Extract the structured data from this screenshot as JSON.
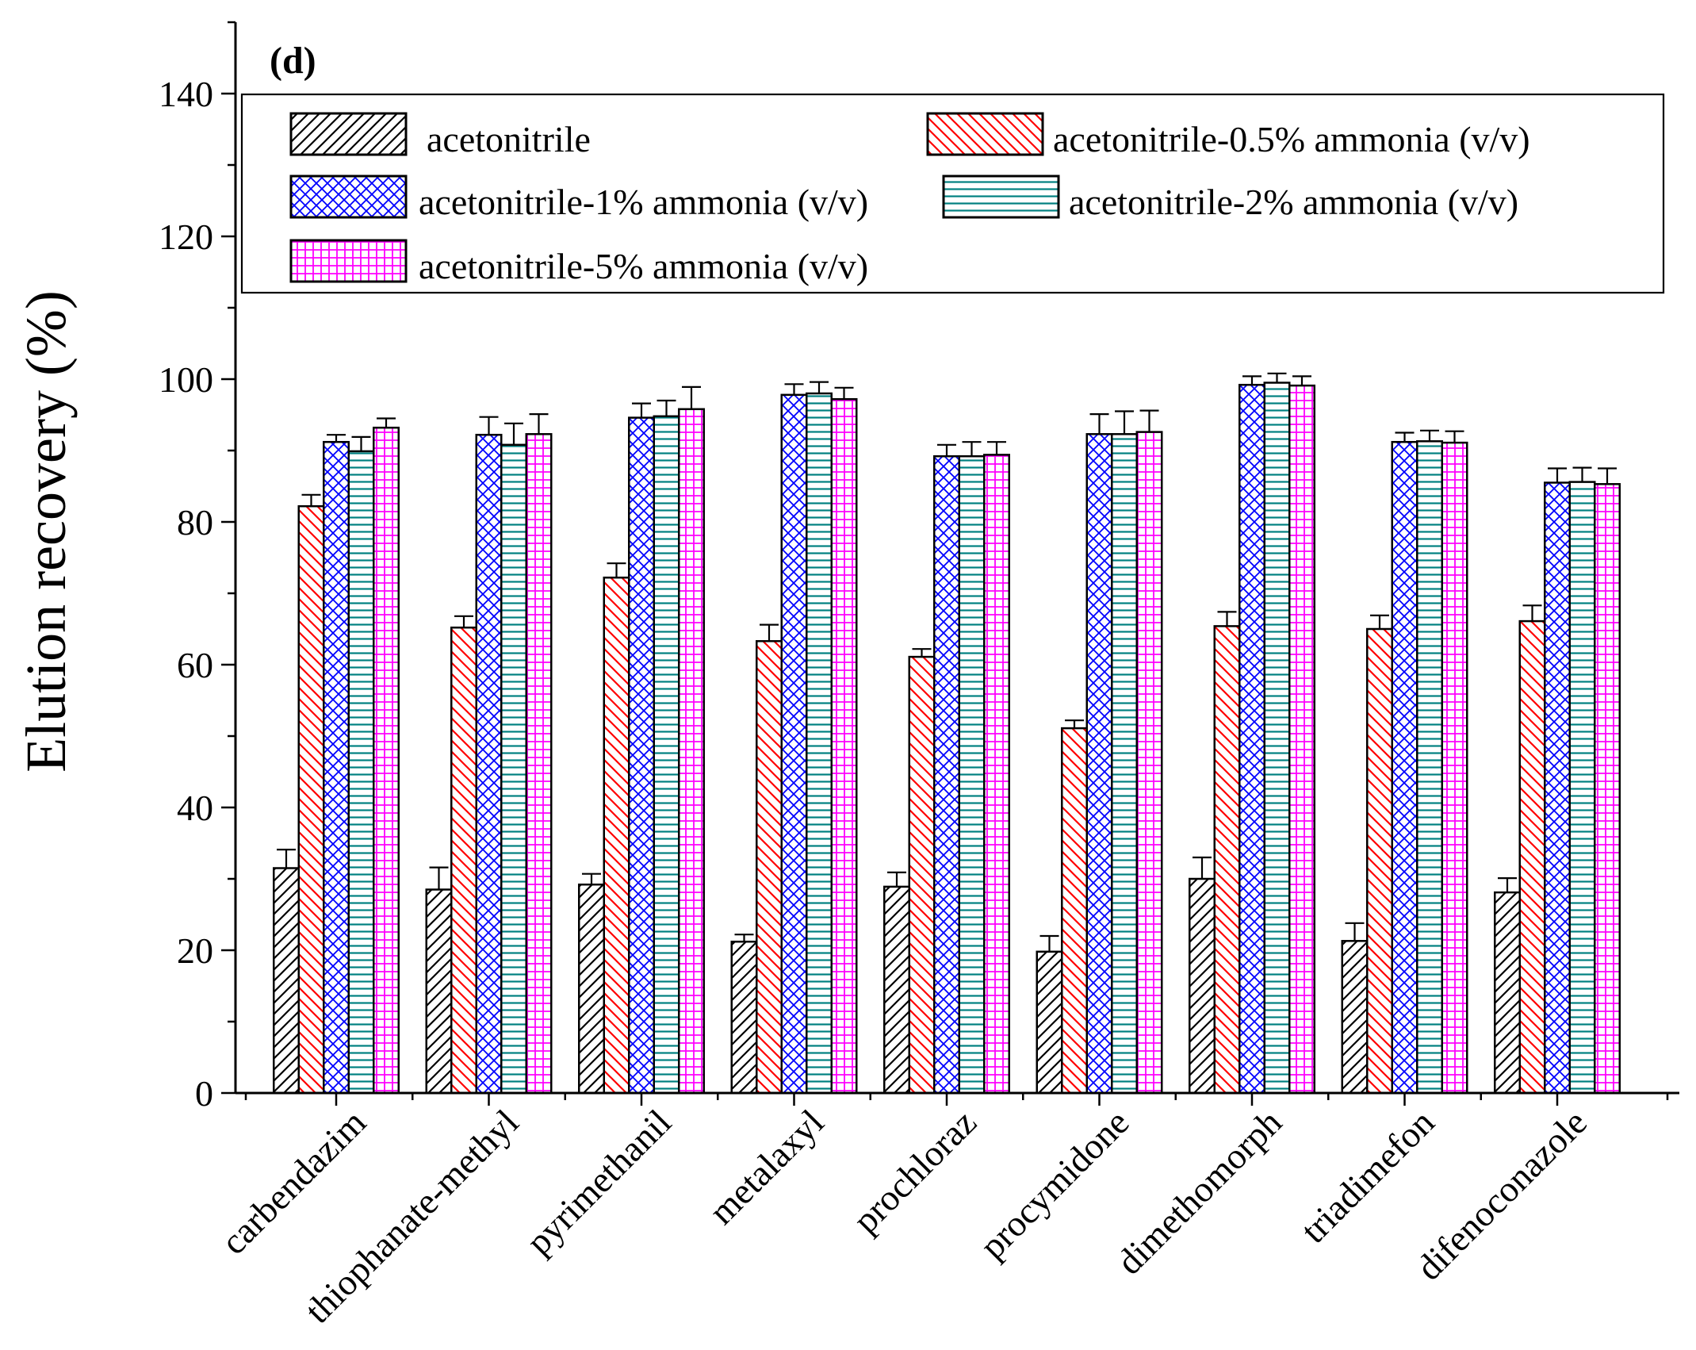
{
  "chart_data": {
    "type": "bar",
    "panel_label": "(d)",
    "ylabel": "Elution recovery (%)",
    "xlabel": "",
    "ylim": [
      0,
      150
    ],
    "yticks": [
      0,
      20,
      40,
      60,
      80,
      100,
      120,
      140
    ],
    "categories": [
      "carbendazim",
      "thiophanate-methyl",
      "pyrimethanil",
      "metalaxyl",
      "prochloraz",
      "procymidone",
      "dimethomorph",
      "triadimefon",
      "difenoconazole"
    ],
    "series": [
      {
        "name": "acetonitrile",
        "color": "#000000",
        "pattern": "diagonal-forward",
        "values": [
          31.5,
          28.5,
          29.2,
          21.2,
          28.9,
          19.8,
          30.0,
          21.3,
          28.1
        ],
        "errors": [
          2.6,
          3.1,
          1.5,
          1.0,
          2.0,
          2.2,
          3.0,
          2.5,
          2.0
        ]
      },
      {
        "name": "acetonitrile-0.5% ammonia (v/v)",
        "color": "#ff0000",
        "pattern": "diagonal-backward",
        "values": [
          82.2,
          65.2,
          72.2,
          63.3,
          61.1,
          51.1,
          65.4,
          65.0,
          66.1
        ],
        "errors": [
          1.6,
          1.6,
          2.0,
          2.3,
          1.1,
          1.1,
          2.0,
          1.9,
          2.2
        ]
      },
      {
        "name": "acetonitrile-1% ammonia (v/v)",
        "color": "#0000ff",
        "pattern": "crosshatch",
        "values": [
          91.2,
          92.2,
          94.6,
          97.8,
          89.2,
          92.3,
          99.2,
          91.2,
          85.5
        ],
        "errors": [
          1.0,
          2.5,
          2.0,
          1.5,
          1.6,
          2.8,
          1.2,
          1.3,
          2.0
        ]
      },
      {
        "name": "acetonitrile-2% ammonia (v/v)",
        "color": "#008080",
        "pattern": "horizontal",
        "values": [
          89.9,
          90.8,
          94.8,
          98.0,
          89.2,
          92.3,
          99.5,
          91.3,
          85.6
        ],
        "errors": [
          2.0,
          3.0,
          2.2,
          1.6,
          2.0,
          3.2,
          1.3,
          1.5,
          2.0
        ]
      },
      {
        "name": "acetonitrile-5% ammonia (v/v)",
        "color": "#ff00ff",
        "pattern": "grid",
        "values": [
          93.2,
          92.3,
          95.8,
          97.2,
          89.4,
          92.6,
          99.1,
          91.1,
          85.3
        ],
        "errors": [
          1.3,
          2.8,
          3.1,
          1.6,
          1.8,
          3.0,
          1.3,
          1.6,
          2.2
        ]
      }
    ],
    "legend": {
      "position": "top",
      "columns": 2
    }
  }
}
